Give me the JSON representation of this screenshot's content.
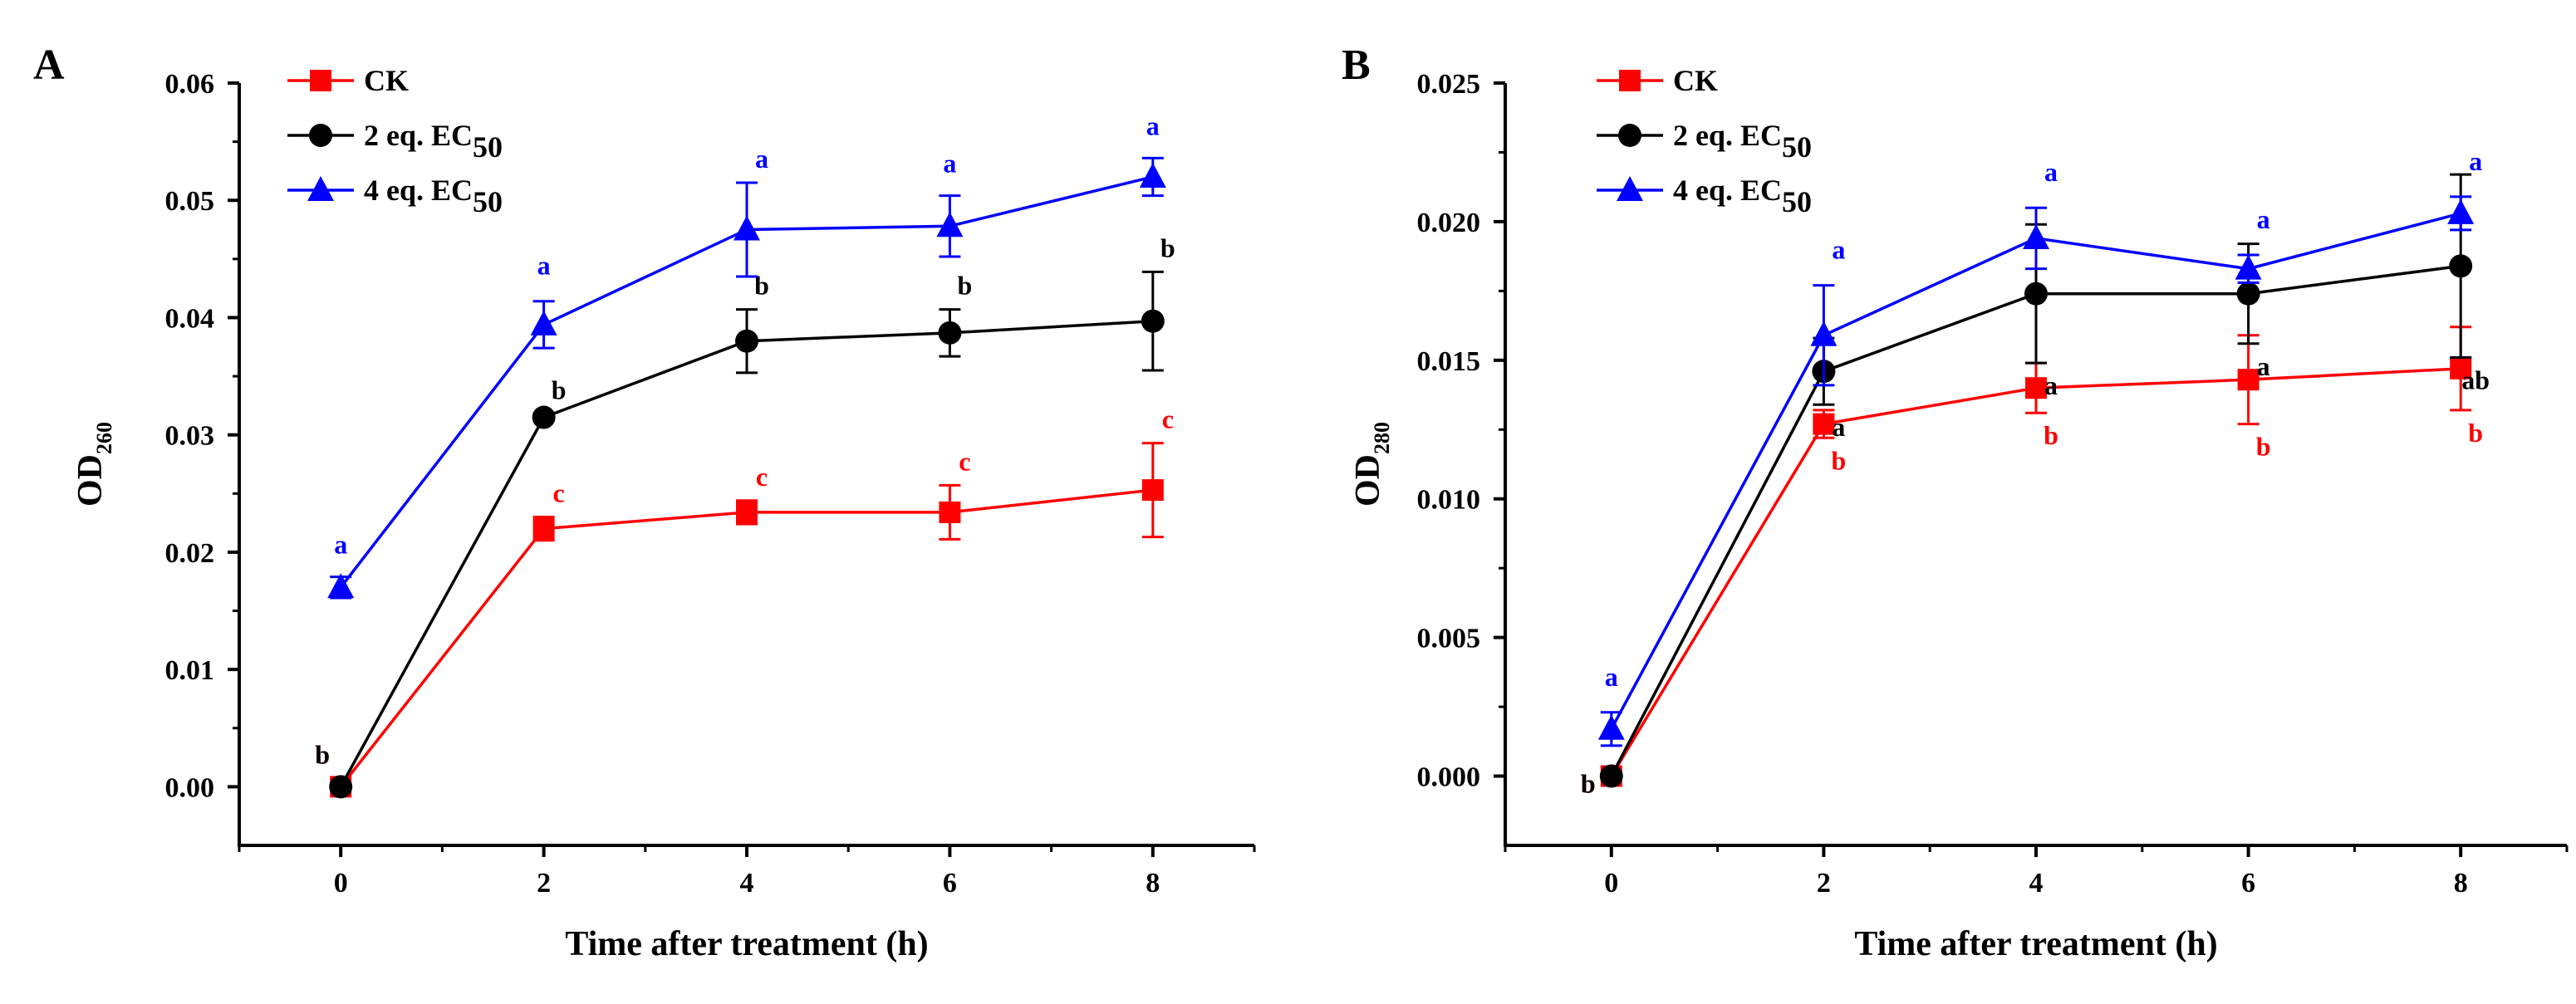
{
  "figure": {
    "panels": [
      "A",
      "B"
    ]
  },
  "chart_data": [
    {
      "type": "line",
      "panel_label": "A",
      "xlabel": "Time after treatment (h)",
      "ylabel": "OD",
      "ylabel_sub": "260",
      "x": [
        0,
        2,
        4,
        6,
        8
      ],
      "x_ticks": [
        "0",
        "2",
        "4",
        "6",
        "8"
      ],
      "xlim": [
        -1,
        9
      ],
      "ylim": [
        -0.005,
        0.06
      ],
      "y_ticks": [
        "0.00",
        "0.01",
        "0.02",
        "0.03",
        "0.04",
        "0.05",
        "0.06"
      ],
      "legend_position": "top-left",
      "series": [
        {
          "name": "CK",
          "name_main": "CK",
          "name_sub": "",
          "color": "#ff0000",
          "marker": "square",
          "values": [
            0.0,
            0.022,
            0.0234,
            0.0234,
            0.0253
          ],
          "errors": [
            0.0,
            0.001,
            0.001,
            0.0023,
            0.004
          ],
          "letters": [
            "b",
            "c",
            "c",
            "c",
            "c"
          ]
        },
        {
          "name": "2 eq. EC50",
          "name_main": "2 eq. EC",
          "name_sub": "50",
          "color": "#000000",
          "marker": "circle",
          "values": [
            0.0,
            0.0315,
            0.038,
            0.0387,
            0.0397
          ],
          "errors": [
            0.0,
            0.0003,
            0.0027,
            0.002,
            0.0042
          ],
          "letters": [
            "b",
            "b",
            "b",
            "b",
            "b"
          ]
        },
        {
          "name": "4 eq. EC50",
          "name_main": "4 eq. EC",
          "name_sub": "50",
          "color": "#0000ff",
          "marker": "triangle",
          "values": [
            0.017,
            0.0394,
            0.0475,
            0.0478,
            0.052
          ],
          "errors": [
            0.0009,
            0.002,
            0.004,
            0.0026,
            0.0016
          ],
          "letters": [
            "a",
            "a",
            "a",
            "a",
            "a"
          ]
        }
      ]
    },
    {
      "type": "line",
      "panel_label": "B",
      "xlabel": "Time after treatment (h)",
      "ylabel": "OD",
      "ylabel_sub": "280",
      "x": [
        0,
        2,
        4,
        6,
        8
      ],
      "x_ticks": [
        "0",
        "2",
        "4",
        "6",
        "8"
      ],
      "xlim": [
        -1,
        9
      ],
      "ylim": [
        -0.0025,
        0.025
      ],
      "y_ticks": [
        "0.000",
        "0.005",
        "0.010",
        "0.015",
        "0.020",
        "0.025"
      ],
      "legend_position": "top-left",
      "series": [
        {
          "name": "CK",
          "name_main": "CK",
          "name_sub": "",
          "color": "#ff0000",
          "marker": "square",
          "values": [
            0.0,
            0.0127,
            0.014,
            0.0143,
            0.0147
          ],
          "errors": [
            0.0,
            0.0005,
            0.0009,
            0.0016,
            0.0015
          ],
          "letters": [
            "b",
            "b",
            "b",
            "b",
            "b"
          ]
        },
        {
          "name": "2 eq. EC50",
          "name_main": "2 eq. EC",
          "name_sub": "50",
          "color": "#000000",
          "marker": "circle",
          "values": [
            0.0,
            0.0146,
            0.0174,
            0.0174,
            0.0184
          ],
          "errors": [
            0.0,
            0.0012,
            0.0025,
            0.0018,
            0.0033
          ],
          "letters": [
            "b",
            "a",
            "a",
            "a",
            "ab"
          ]
        },
        {
          "name": "4 eq. EC50",
          "name_main": "4 eq. EC",
          "name_sub": "50",
          "color": "#0000ff",
          "marker": "triangle",
          "values": [
            0.0017,
            0.0159,
            0.0194,
            0.0183,
            0.0203
          ],
          "errors": [
            0.0006,
            0.0018,
            0.0011,
            0.0005,
            0.0006
          ],
          "letters": [
            "a",
            "a",
            "a",
            "a",
            "a"
          ]
        }
      ]
    }
  ]
}
